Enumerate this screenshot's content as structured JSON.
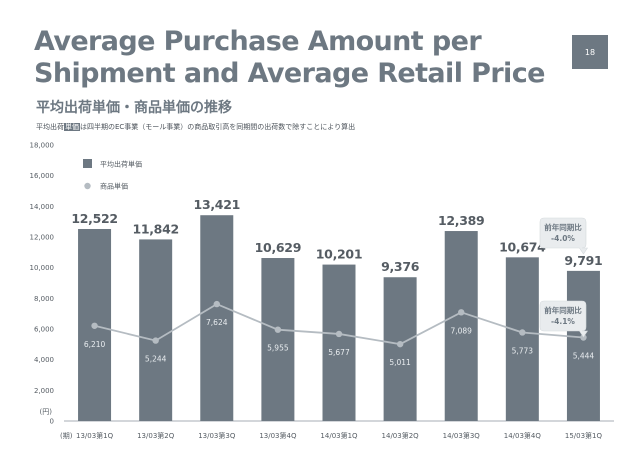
{
  "header": {
    "title": "Average Purchase Amount per Shipment and Average Retail Price",
    "subtitle": "平均出荷単価・商品単価の推移",
    "note_before": "平均出荷",
    "note_highlight": "単価",
    "note_after": "は四半期のEC事業（モール事業）の商品取引高を同期間の出荷数で除すことにより算出",
    "page_number": "18"
  },
  "colors": {
    "bar": "#6d7882",
    "line": "#b5bcc2",
    "text": "#6d7882",
    "callout_bg": "#e9ecee"
  },
  "chart_data": {
    "type": "bar",
    "categories": [
      "13/03第1Q",
      "13/03第2Q",
      "13/03第3Q",
      "13/03第4Q",
      "14/03第1Q",
      "14/03第2Q",
      "14/03第3Q",
      "14/03第4Q",
      "15/03第1Q"
    ],
    "series": [
      {
        "name": "平均出荷単価",
        "kind": "bar",
        "values": [
          12522,
          11842,
          13421,
          10629,
          10201,
          9376,
          12389,
          10674,
          9791
        ],
        "labels": [
          "12,522",
          "11,842",
          "13,421",
          "10,629",
          "10,201",
          "9,376",
          "12,389",
          "10,674",
          "9,791"
        ]
      },
      {
        "name": "商品単価",
        "kind": "line",
        "values": [
          6210,
          5244,
          7624,
          5955,
          5677,
          5011,
          7089,
          5773,
          5444
        ],
        "labels": [
          "6,210",
          "5,244",
          "7,624",
          "5,955",
          "5,677",
          "5,011",
          "7,089",
          "5,773",
          "5,444"
        ]
      }
    ],
    "ylim": [
      0,
      18000
    ],
    "yticks": [
      "0",
      "2,000",
      "4,000",
      "6,000",
      "8,000",
      "10,000",
      "12,000",
      "14,000",
      "16,000",
      "18,000"
    ],
    "ylabel": "(円)",
    "xlabel": "(期)",
    "legend_position": "top-left",
    "grid": false,
    "annotations": [
      {
        "series": 0,
        "index": 8,
        "line1": "前年同期比",
        "line2": "-4.0%"
      },
      {
        "series": 1,
        "index": 8,
        "line1": "前年同期比",
        "line2": "-4.1%"
      }
    ]
  }
}
